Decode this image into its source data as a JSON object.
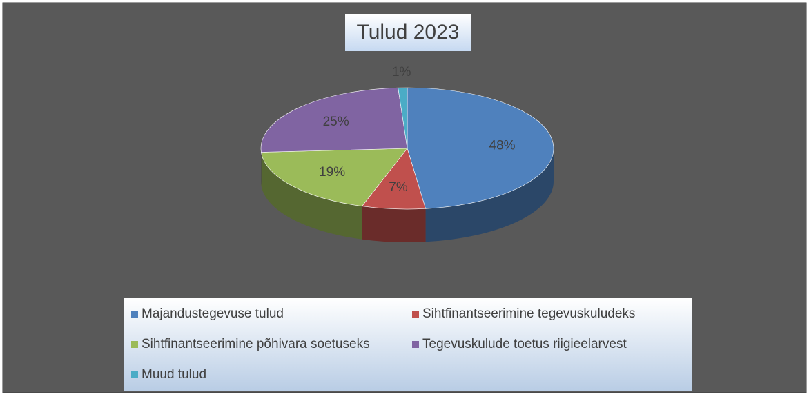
{
  "chart_data": {
    "type": "pie",
    "title": "Tulud 2023",
    "categories": [
      "Majandustegevuse tulud",
      "Sihtfinantseerimine tegevuskuludeks",
      "Sihtfinantseerimine põhivara soetuseks",
      "Tegevuskulude toetus riigieelarvest",
      "Muud tulud"
    ],
    "values": [
      48,
      7,
      19,
      25,
      1
    ],
    "value_labels": [
      "48%",
      "7%",
      "19%",
      "25%",
      "1%"
    ],
    "colors": [
      "#4f81bd",
      "#c0504d",
      "#9bbb59",
      "#8064a2",
      "#4bacc6"
    ],
    "legend": "bottom"
  }
}
